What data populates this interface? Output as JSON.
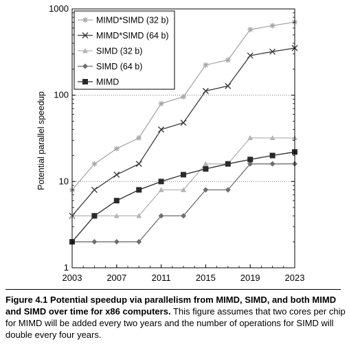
{
  "chart_data": {
    "type": "line",
    "ylabel": "Potential parallel speedup",
    "xlabel": "",
    "yscale": "log",
    "ylim": [
      1,
      1000
    ],
    "xlim": [
      2003,
      2023
    ],
    "x_ticks": [
      "2003",
      "2007",
      "2011",
      "2015",
      "2019",
      "2023"
    ],
    "y_ticks": [
      "1",
      "10",
      "100",
      "1000"
    ],
    "grid": "horizontal dotted at 10 and 100",
    "legend_position": "top-left",
    "x": [
      2003,
      2005,
      2007,
      2009,
      2011,
      2013,
      2015,
      2017,
      2019,
      2021,
      2023
    ],
    "series": [
      {
        "name": "MIMD*SIMD (32 b)",
        "marker": "asterisk",
        "color": "#a8a8a8",
        "values": [
          8,
          16,
          24,
          32,
          80,
          96,
          224,
          256,
          576,
          640,
          704
        ]
      },
      {
        "name": "MIMD*SIMD (64 b)",
        "marker": "x",
        "color": "#3a3a3a",
        "values": [
          4,
          8,
          12,
          16,
          40,
          48,
          112,
          128,
          288,
          320,
          352
        ]
      },
      {
        "name": "SIMD (32 b)",
        "marker": "triangle",
        "color": "#b4b4b4",
        "values": [
          4,
          4,
          4,
          4,
          8,
          8,
          16,
          16,
          32,
          32,
          32
        ]
      },
      {
        "name": "SIMD (64 b)",
        "marker": "diamond",
        "color": "#6e6e6e",
        "values": [
          2,
          2,
          2,
          2,
          4,
          4,
          8,
          8,
          16,
          16,
          16
        ]
      },
      {
        "name": "MIMD",
        "marker": "square",
        "color": "#2a2a2a",
        "values": [
          2,
          4,
          6,
          8,
          10,
          12,
          14,
          16,
          18,
          20,
          22
        ]
      }
    ]
  },
  "caption": {
    "label": "Figure 4.1",
    "title": "Potential speedup via parallelism from MIMD, SIMD, and both MIMD and SIMD over time for x86 computers.",
    "body": "This figure assumes that two cores per chip for MIMD will be added every two years and the number of operations for SIMD will double every four years."
  }
}
